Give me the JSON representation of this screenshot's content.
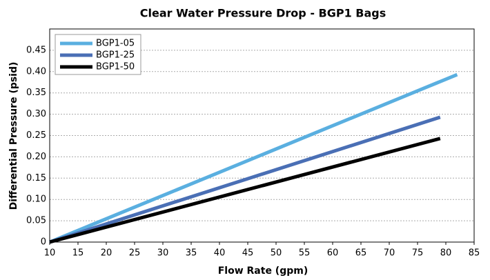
{
  "chart_data": {
    "type": "line",
    "title": "Clear Water Pressure Drop - BGP1 Bags",
    "xlabel": "Flow Rate (gpm)",
    "ylabel": "Differential Pressure (psid)",
    "series": [
      {
        "name": "BGP1-05",
        "color": "#5aafe0",
        "x": [
          10,
          82
        ],
        "values": [
          0,
          0.393
        ]
      },
      {
        "name": "BGP1-25",
        "color": "#4a6fb5",
        "x": [
          10,
          79
        ],
        "values": [
          0,
          0.293
        ]
      },
      {
        "name": "BGP1-50",
        "color": "#000000",
        "x": [
          10,
          79
        ],
        "values": [
          0,
          0.243
        ]
      }
    ],
    "xlim": [
      10,
      85
    ],
    "xticks": [
      10,
      15,
      20,
      25,
      30,
      35,
      40,
      45,
      50,
      55,
      60,
      65,
      70,
      75,
      80,
      85
    ],
    "ylim": [
      0,
      0.5
    ],
    "yticks": [
      0,
      0.05,
      {
        "value": 0.1,
        "label": "0.10"
      },
      0.15,
      {
        "value": 0.2,
        "label": "0.20"
      },
      0.25,
      {
        "value": 0.3,
        "label": "0.30"
      },
      0.35,
      {
        "value": 0.4,
        "label": "0.40"
      },
      0.45
    ],
    "grid": true,
    "legend": "upper left"
  }
}
